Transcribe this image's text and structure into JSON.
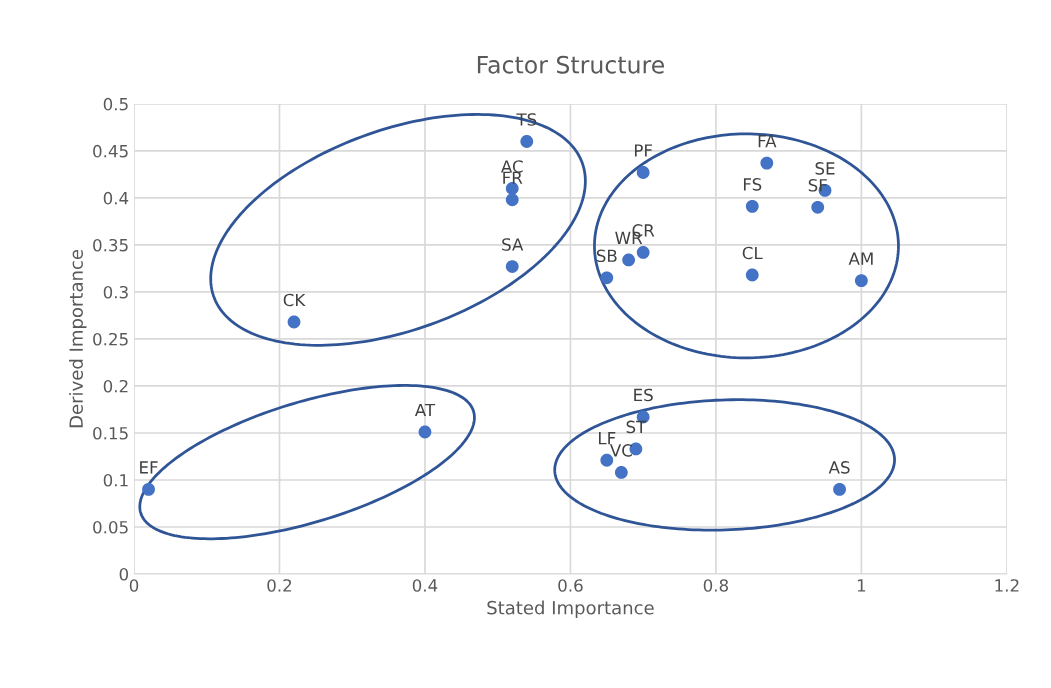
{
  "chart_data": {
    "type": "scatter",
    "title": "Factor Structure",
    "xlabel": "Stated Importance",
    "ylabel": "Derived Importance",
    "series": [
      {
        "color": "#4472c4",
        "x": [
          0.54,
          0.52,
          0.52,
          0.52,
          0.22,
          0.7,
          0.87,
          0.95,
          0.94,
          0.85,
          0.7,
          0.68,
          0.65,
          0.85,
          1.0,
          0.02,
          0.4,
          0.7,
          0.69,
          0.65,
          0.67,
          0.97
        ],
        "values": [
          0.46,
          0.41,
          0.398,
          0.327,
          0.268,
          0.427,
          0.437,
          0.408,
          0.39,
          0.391,
          0.342,
          0.334,
          0.315,
          0.318,
          0.312,
          0.09,
          0.151,
          0.167,
          0.133,
          0.121,
          0.108,
          0.09
        ]
      }
    ],
    "annotations": [
      {
        "text": "TS",
        "x": 0.54,
        "y": 0.46
      },
      {
        "text": "AC",
        "x": 0.52,
        "y": 0.41
      },
      {
        "text": "FR",
        "x": 0.52,
        "y": 0.398
      },
      {
        "text": "SA",
        "x": 0.52,
        "y": 0.327
      },
      {
        "text": "CK",
        "x": 0.22,
        "y": 0.268
      },
      {
        "text": "PF",
        "x": 0.7,
        "y": 0.427
      },
      {
        "text": "FA",
        "x": 0.87,
        "y": 0.437
      },
      {
        "text": "SE",
        "x": 0.95,
        "y": 0.408
      },
      {
        "text": "SF",
        "x": 0.94,
        "y": 0.39
      },
      {
        "text": "FS",
        "x": 0.85,
        "y": 0.391
      },
      {
        "text": "CR",
        "x": 0.7,
        "y": 0.342
      },
      {
        "text": "WR",
        "x": 0.68,
        "y": 0.334
      },
      {
        "text": "SB",
        "x": 0.65,
        "y": 0.315
      },
      {
        "text": "CL",
        "x": 0.85,
        "y": 0.318
      },
      {
        "text": "AM",
        "x": 1.0,
        "y": 0.312
      },
      {
        "text": "EF",
        "x": 0.02,
        "y": 0.09
      },
      {
        "text": "AT",
        "x": 0.4,
        "y": 0.151
      },
      {
        "text": "ES",
        "x": 0.7,
        "y": 0.167
      },
      {
        "text": "ST",
        "x": 0.69,
        "y": 0.133
      },
      {
        "text": "LF",
        "x": 0.65,
        "y": 0.121
      },
      {
        "text": "VC",
        "x": 0.67,
        "y": 0.108
      },
      {
        "text": "AS",
        "x": 0.97,
        "y": 0.09
      }
    ],
    "xlim": [
      0,
      1.2
    ],
    "xticks": [
      0,
      0.2,
      0.4,
      0.6,
      0.8,
      1,
      1.2
    ],
    "ylim": [
      0,
      0.5
    ],
    "yticks": [
      0,
      0.05,
      0.1,
      0.15,
      0.2,
      0.25,
      0.3,
      0.35,
      0.4,
      0.45,
      0.5
    ],
    "grid": true,
    "marker": "circle",
    "legend": false
  }
}
